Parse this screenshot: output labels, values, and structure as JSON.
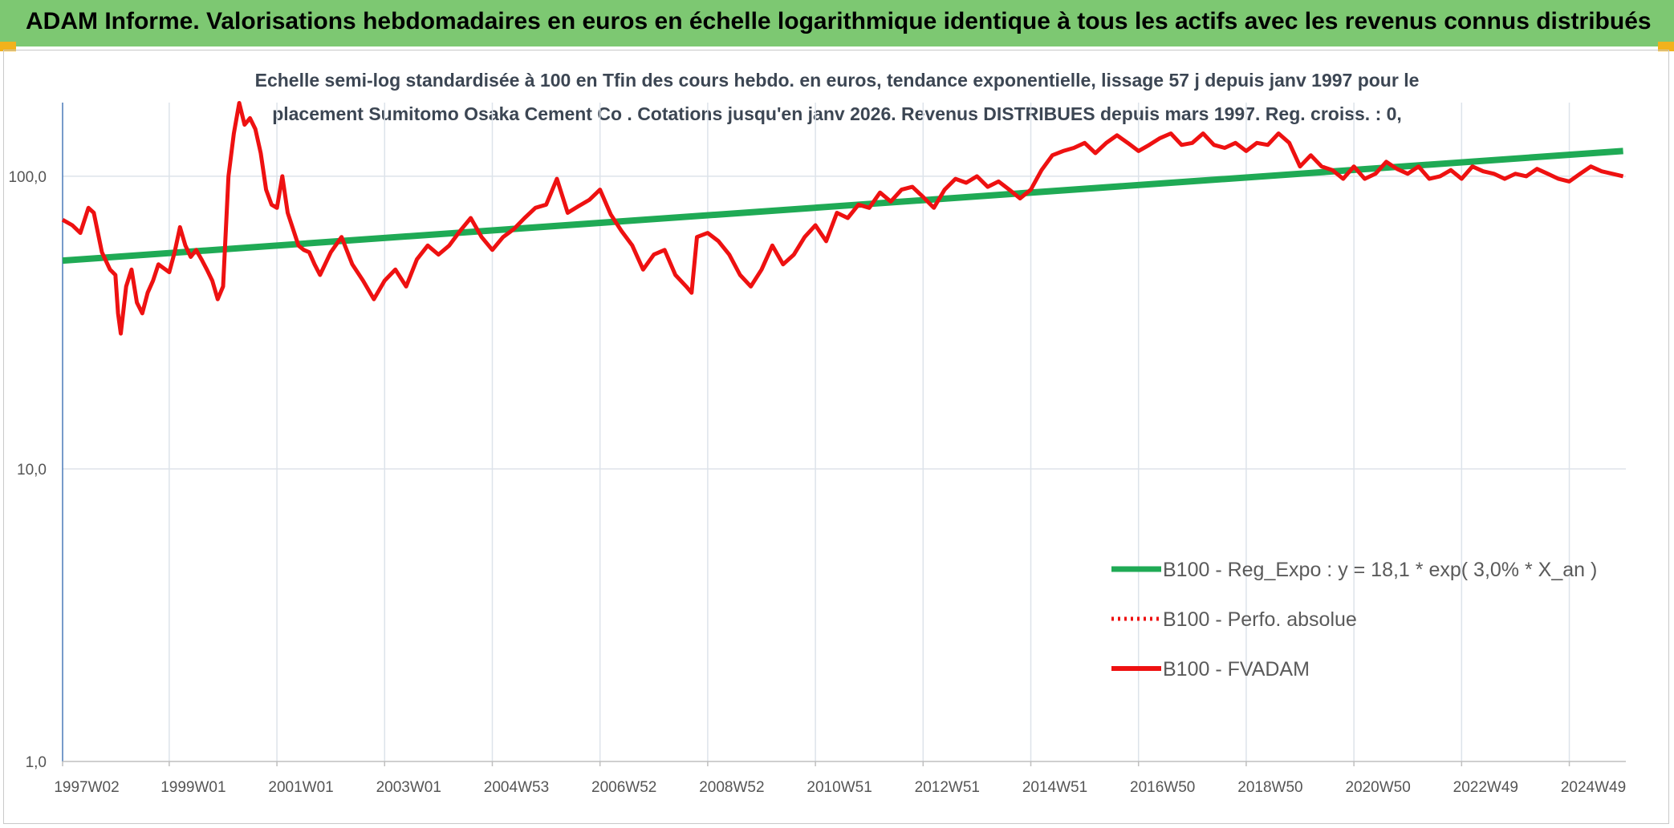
{
  "banner": {
    "title": "ADAM Informe. Valorisations hebdomadaires en euros en échelle logarithmique identique à tous les actifs avec les revenus connus distribués"
  },
  "colors": {
    "banner": "#7dc872",
    "corner": "#f2b21c",
    "trend": "#1faa55",
    "fvadam": "#ee1111",
    "perfo": "#ee1111",
    "grid": "#dde3ea",
    "axis": "#4a7ab8"
  },
  "chart_data": {
    "type": "line",
    "subtitle_lines": [
      "Echelle semi-log standardisée à 100 en Tfin des cours hebdo. en euros, tendance exponentielle, lissage 57 j depuis janv 1997 pour le",
      "placement Sumitomo Osaka Cement Co . Cotations jusqu'en janv 2026. Revenus DISTRIBUES depuis mars 1997. Reg. croiss. : 0,"
    ],
    "y_scale": "log",
    "ylim": [
      1,
      200
    ],
    "yticks": [
      {
        "value": 1,
        "label": "1,0"
      },
      {
        "value": 10,
        "label": "10,0"
      },
      {
        "value": 100,
        "label": "100,0"
      }
    ],
    "xlim": [
      1997.02,
      2026.05
    ],
    "xticks": [
      {
        "value": 1997.02,
        "label": "1997W02"
      },
      {
        "value": 1999.0,
        "label": "1999W01"
      },
      {
        "value": 2001.0,
        "label": "2001W01"
      },
      {
        "value": 2003.0,
        "label": "2003W01"
      },
      {
        "value": 2005.0,
        "label": "2004W53"
      },
      {
        "value": 2007.0,
        "label": "2006W52"
      },
      {
        "value": 2009.0,
        "label": "2008W52"
      },
      {
        "value": 2011.0,
        "label": "2010W51"
      },
      {
        "value": 2013.0,
        "label": "2012W51"
      },
      {
        "value": 2015.0,
        "label": "2014W51"
      },
      {
        "value": 2017.0,
        "label": "2016W50"
      },
      {
        "value": 2019.0,
        "label": "2018W50"
      },
      {
        "value": 2021.0,
        "label": "2020W50"
      },
      {
        "value": 2023.0,
        "label": "2022W49"
      },
      {
        "value": 2025.0,
        "label": "2024W49"
      }
    ],
    "grid": true,
    "legend_position": "bottom-right",
    "series": [
      {
        "name": "B100 - Reg_Expo : y = 18,1 * exp( 3,0% *  X_an )",
        "style": "solid-thick",
        "color": "#1faa55",
        "points": [
          [
            1997.02,
            51.5
          ],
          [
            2026.0,
            122.0
          ]
        ]
      },
      {
        "name": "B100 - Perfo. absolue",
        "style": "dotted",
        "color": "#ee1111",
        "points": []
      },
      {
        "name": "B100 - FVADAM",
        "style": "solid",
        "color": "#ee1111",
        "points": [
          [
            1997.02,
            71
          ],
          [
            1997.2,
            68
          ],
          [
            1997.35,
            64
          ],
          [
            1997.5,
            78
          ],
          [
            1997.6,
            75
          ],
          [
            1997.75,
            55
          ],
          [
            1997.9,
            48
          ],
          [
            1998.0,
            46
          ],
          [
            1998.05,
            34
          ],
          [
            1998.1,
            29
          ],
          [
            1998.2,
            42
          ],
          [
            1998.3,
            48
          ],
          [
            1998.4,
            37
          ],
          [
            1998.5,
            34
          ],
          [
            1998.6,
            40
          ],
          [
            1998.7,
            44
          ],
          [
            1998.8,
            50
          ],
          [
            1999.0,
            47
          ],
          [
            1999.1,
            55
          ],
          [
            1999.2,
            67
          ],
          [
            1999.3,
            58
          ],
          [
            1999.4,
            53
          ],
          [
            1999.5,
            56
          ],
          [
            1999.6,
            52
          ],
          [
            1999.7,
            48
          ],
          [
            1999.8,
            44
          ],
          [
            1999.9,
            38
          ],
          [
            2000.0,
            42
          ],
          [
            2000.1,
            100
          ],
          [
            2000.2,
            140
          ],
          [
            2000.3,
            178
          ],
          [
            2000.4,
            150
          ],
          [
            2000.5,
            158
          ],
          [
            2000.6,
            145
          ],
          [
            2000.7,
            120
          ],
          [
            2000.8,
            90
          ],
          [
            2000.9,
            80
          ],
          [
            2001.0,
            78
          ],
          [
            2001.1,
            100
          ],
          [
            2001.2,
            75
          ],
          [
            2001.3,
            66
          ],
          [
            2001.4,
            58
          ],
          [
            2001.5,
            56
          ],
          [
            2001.6,
            55
          ],
          [
            2001.7,
            50
          ],
          [
            2001.8,
            46
          ],
          [
            2002.0,
            55
          ],
          [
            2002.2,
            62
          ],
          [
            2002.4,
            50
          ],
          [
            2002.6,
            44
          ],
          [
            2002.8,
            38
          ],
          [
            2003.0,
            44
          ],
          [
            2003.2,
            48
          ],
          [
            2003.4,
            42
          ],
          [
            2003.6,
            52
          ],
          [
            2003.8,
            58
          ],
          [
            2004.0,
            54
          ],
          [
            2004.2,
            58
          ],
          [
            2004.4,
            65
          ],
          [
            2004.6,
            72
          ],
          [
            2004.8,
            62
          ],
          [
            2005.0,
            56
          ],
          [
            2005.2,
            62
          ],
          [
            2005.4,
            66
          ],
          [
            2005.6,
            72
          ],
          [
            2005.8,
            78
          ],
          [
            2006.0,
            80
          ],
          [
            2006.2,
            98
          ],
          [
            2006.4,
            75
          ],
          [
            2006.6,
            79
          ],
          [
            2006.8,
            83
          ],
          [
            2007.0,
            90
          ],
          [
            2007.2,
            74
          ],
          [
            2007.4,
            65
          ],
          [
            2007.6,
            58
          ],
          [
            2007.8,
            48
          ],
          [
            2008.0,
            54
          ],
          [
            2008.2,
            56
          ],
          [
            2008.4,
            46
          ],
          [
            2008.6,
            42
          ],
          [
            2008.7,
            40
          ],
          [
            2008.8,
            62
          ],
          [
            2009.0,
            64
          ],
          [
            2009.2,
            60
          ],
          [
            2009.4,
            54
          ],
          [
            2009.6,
            46
          ],
          [
            2009.8,
            42
          ],
          [
            2010.0,
            48
          ],
          [
            2010.2,
            58
          ],
          [
            2010.4,
            50
          ],
          [
            2010.6,
            54
          ],
          [
            2010.8,
            62
          ],
          [
            2011.0,
            68
          ],
          [
            2011.2,
            60
          ],
          [
            2011.4,
            75
          ],
          [
            2011.6,
            72
          ],
          [
            2011.8,
            80
          ],
          [
            2012.0,
            78
          ],
          [
            2012.2,
            88
          ],
          [
            2012.4,
            82
          ],
          [
            2012.6,
            90
          ],
          [
            2012.8,
            92
          ],
          [
            2013.0,
            85
          ],
          [
            2013.2,
            78
          ],
          [
            2013.4,
            90
          ],
          [
            2013.6,
            98
          ],
          [
            2013.8,
            95
          ],
          [
            2014.0,
            100
          ],
          [
            2014.2,
            92
          ],
          [
            2014.4,
            96
          ],
          [
            2014.6,
            90
          ],
          [
            2014.8,
            84
          ],
          [
            2015.0,
            90
          ],
          [
            2015.2,
            105
          ],
          [
            2015.4,
            118
          ],
          [
            2015.6,
            122
          ],
          [
            2015.8,
            125
          ],
          [
            2016.0,
            130
          ],
          [
            2016.2,
            120
          ],
          [
            2016.4,
            130
          ],
          [
            2016.6,
            138
          ],
          [
            2016.8,
            130
          ],
          [
            2017.0,
            122
          ],
          [
            2017.2,
            128
          ],
          [
            2017.4,
            135
          ],
          [
            2017.6,
            140
          ],
          [
            2017.8,
            128
          ],
          [
            2018.0,
            130
          ],
          [
            2018.2,
            140
          ],
          [
            2018.4,
            128
          ],
          [
            2018.6,
            125
          ],
          [
            2018.8,
            130
          ],
          [
            2019.0,
            122
          ],
          [
            2019.2,
            130
          ],
          [
            2019.4,
            128
          ],
          [
            2019.6,
            140
          ],
          [
            2019.8,
            130
          ],
          [
            2020.0,
            108
          ],
          [
            2020.2,
            118
          ],
          [
            2020.4,
            108
          ],
          [
            2020.6,
            105
          ],
          [
            2020.8,
            98
          ],
          [
            2021.0,
            108
          ],
          [
            2021.2,
            98
          ],
          [
            2021.4,
            102
          ],
          [
            2021.6,
            112
          ],
          [
            2021.8,
            106
          ],
          [
            2022.0,
            102
          ],
          [
            2022.2,
            108
          ],
          [
            2022.4,
            98
          ],
          [
            2022.6,
            100
          ],
          [
            2022.8,
            105
          ],
          [
            2023.0,
            98
          ],
          [
            2023.2,
            108
          ],
          [
            2023.4,
            104
          ],
          [
            2023.6,
            102
          ],
          [
            2023.8,
            98
          ],
          [
            2024.0,
            102
          ],
          [
            2024.2,
            100
          ],
          [
            2024.4,
            106
          ],
          [
            2024.6,
            102
          ],
          [
            2024.8,
            98
          ],
          [
            2025.0,
            96
          ],
          [
            2025.2,
            102
          ],
          [
            2025.4,
            108
          ],
          [
            2025.6,
            104
          ],
          [
            2025.8,
            102
          ],
          [
            2026.0,
            100
          ]
        ]
      }
    ]
  }
}
